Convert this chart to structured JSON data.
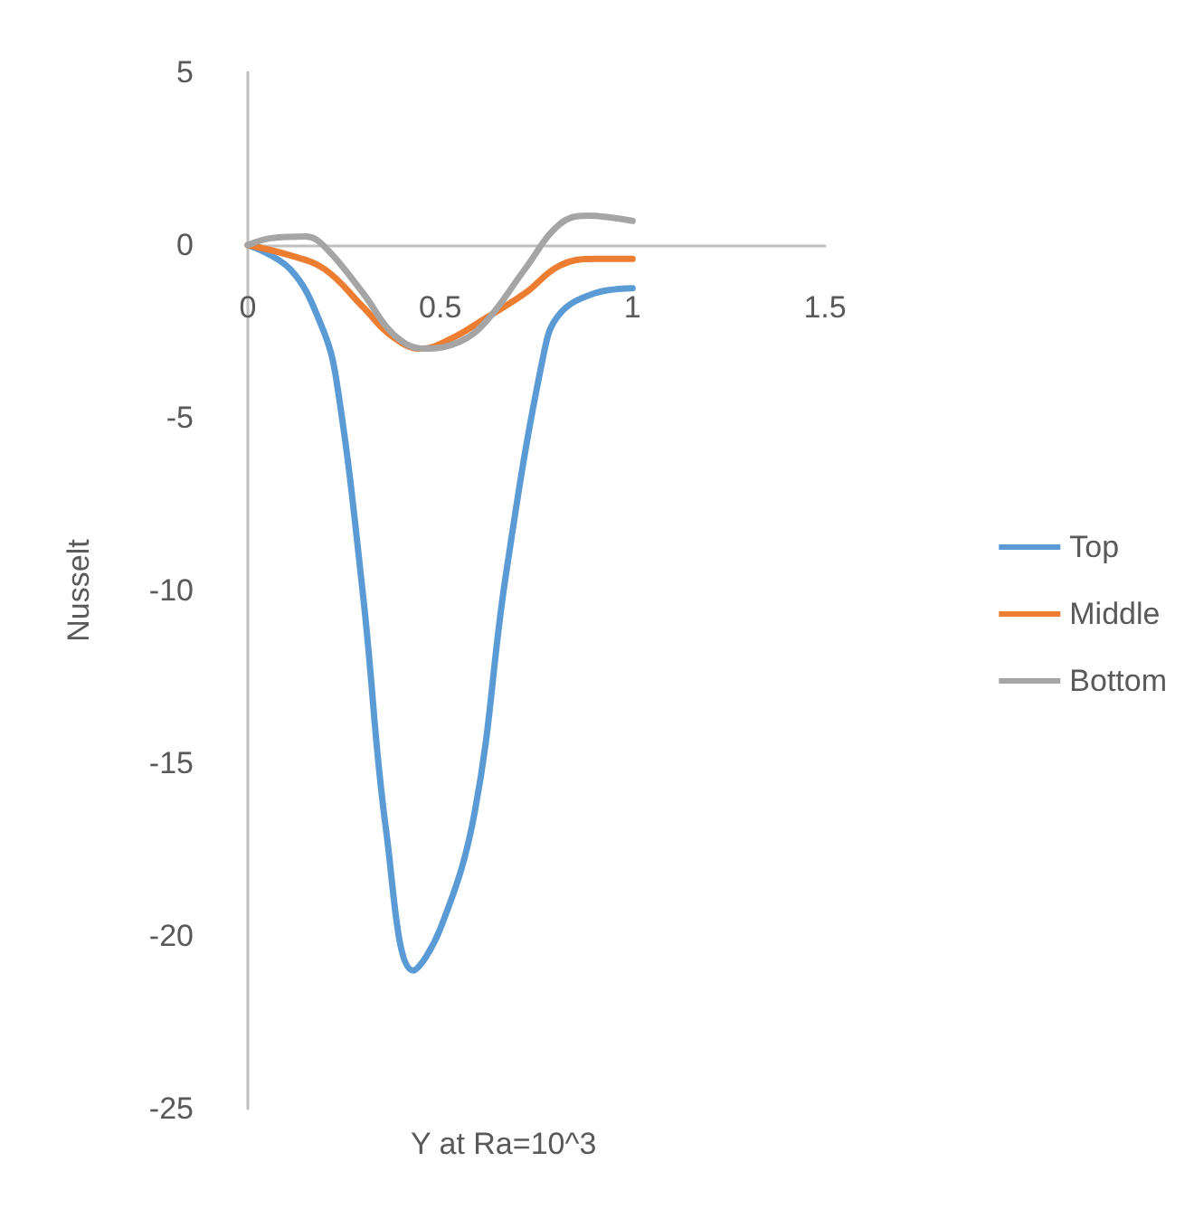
{
  "chart_data": {
    "type": "line",
    "xlabel": "Y at Ra=10^3",
    "ylabel": "Nusselt",
    "xlim": [
      0,
      1.5
    ],
    "xticks": [
      0,
      0.5,
      1,
      1.5
    ],
    "ylim": [
      -25,
      5
    ],
    "yticks": [
      -25,
      -20,
      -15,
      -10,
      -5,
      0,
      5
    ],
    "grid": false,
    "legend": "right",
    "marker": "none",
    "line_style": "solid",
    "series": [
      {
        "name": "Top",
        "color": "#5b9bd5",
        "x": [
          0,
          0.11,
          0.19,
          0.23,
          0.3,
          0.36,
          0.43,
          0.5,
          0.59,
          0.67,
          0.77,
          0.81,
          0.9,
          1
        ],
        "values": [
          0,
          -0.7,
          -2.3,
          -3.9,
          -10.2,
          -17,
          -21,
          -19.8,
          -16.4,
          -9.6,
          -3.1,
          -2,
          -1.4,
          -1.25
        ]
      },
      {
        "name": "Middle",
        "color": "#ed7d31",
        "x": [
          0,
          0.11,
          0.2,
          0.3,
          0.37,
          0.45,
          0.53,
          0.62,
          0.72,
          0.81,
          0.9,
          1
        ],
        "values": [
          0,
          -0.3,
          -0.7,
          -1.8,
          -2.6,
          -3,
          -2.7,
          -2.1,
          -1.4,
          -0.6,
          -0.4,
          -0.4
        ]
      },
      {
        "name": "Bottom",
        "color": "#a5a5a5",
        "x": [
          0,
          0.06,
          0.15,
          0.2,
          0.3,
          0.38,
          0.46,
          0.55,
          0.62,
          0.72,
          0.81,
          0.88,
          1
        ],
        "values": [
          0,
          0.2,
          0.25,
          -0.05,
          -1.4,
          -2.6,
          -3,
          -2.8,
          -2.2,
          -0.7,
          0.6,
          0.85,
          0.7
        ]
      }
    ]
  }
}
